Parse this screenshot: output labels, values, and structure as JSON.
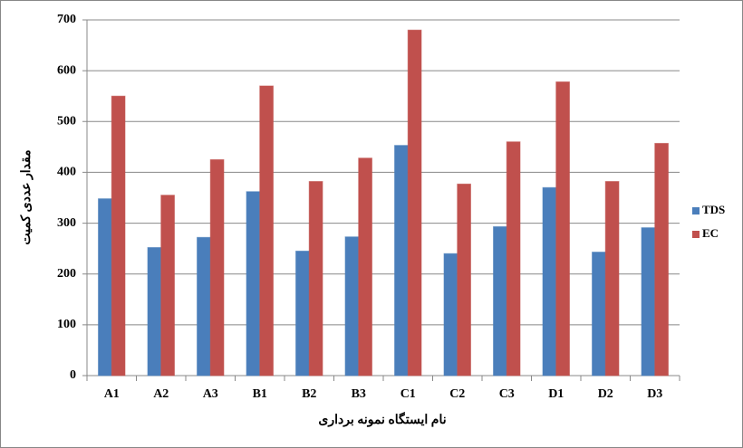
{
  "chart_data": {
    "type": "bar",
    "x_label": "نام ایستگاه نمونه برداری",
    "y_label": "مقدار عددی کمیت",
    "categories": [
      "A1",
      "A2",
      "A3",
      "B1",
      "B2",
      "B3",
      "C1",
      "C2",
      "C3",
      "D1",
      "D2",
      "D3"
    ],
    "series": [
      {
        "name": "TDS",
        "color": "#4a7ebb",
        "values": [
          348,
          252,
          272,
          362,
          245,
          273,
          453,
          240,
          293,
          370,
          243,
          291
        ]
      },
      {
        "name": "EC",
        "color": "#c0504d",
        "values": [
          550,
          355,
          425,
          570,
          382,
          428,
          680,
          377,
          460,
          578,
          382,
          457
        ]
      }
    ],
    "ylim": [
      0,
      700
    ],
    "yticks": [
      0,
      100,
      200,
      300,
      400,
      500,
      600,
      700
    ],
    "grid": true,
    "legend": "right"
  }
}
